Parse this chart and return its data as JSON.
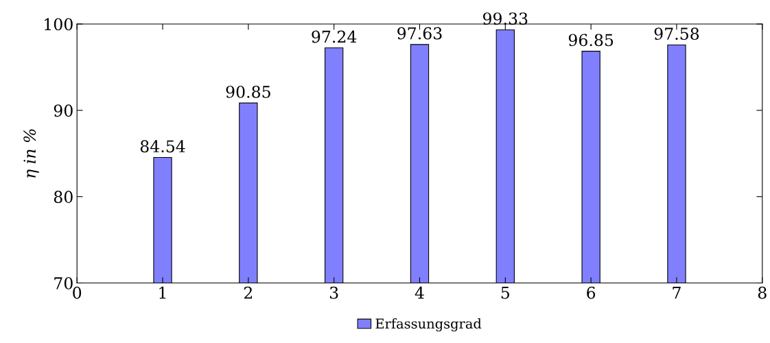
{
  "chart_data": {
    "type": "bar",
    "ylabel": "η in %",
    "x": [
      1,
      2,
      3,
      4,
      5,
      6,
      7
    ],
    "series": [
      {
        "name": "Erfassungsgrad",
        "color": "#8080ff",
        "values": [
          84.54,
          90.85,
          97.24,
          97.63,
          99.33,
          96.85,
          97.58
        ]
      }
    ],
    "xlim": [
      0,
      8
    ],
    "xticks": [
      0,
      1,
      2,
      3,
      4,
      5,
      6,
      7,
      8
    ],
    "ylim": [
      70,
      100
    ],
    "yticks": [
      70,
      80,
      90,
      100
    ],
    "data_labels": true,
    "legend": "bottom"
  }
}
